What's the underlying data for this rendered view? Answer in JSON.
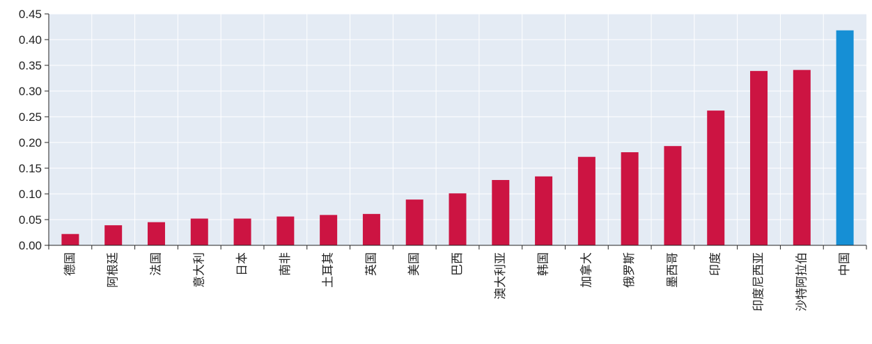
{
  "chart_data": {
    "type": "bar",
    "title": "",
    "xlabel": "",
    "ylabel": "",
    "ylim": [
      0,
      0.45
    ],
    "yticks": [
      "0.00",
      "0.05",
      "0.10",
      "0.15",
      "0.20",
      "0.25",
      "0.30",
      "0.35",
      "0.40",
      "0.45"
    ],
    "grid": true,
    "legend": "none",
    "categories": [
      "德国",
      "阿根廷",
      "法国",
      "意大利",
      "日本",
      "南非",
      "土耳其",
      "英国",
      "美国",
      "巴西",
      "澳大利亚",
      "韩国",
      "加拿大",
      "俄罗斯",
      "墨西哥",
      "印度",
      "印度尼西亚",
      "沙特阿拉伯",
      "中国"
    ],
    "values": [
      0.022,
      0.039,
      0.045,
      0.052,
      0.052,
      0.056,
      0.059,
      0.061,
      0.089,
      0.101,
      0.127,
      0.134,
      0.172,
      0.181,
      0.193,
      0.262,
      0.339,
      0.341,
      0.418
    ],
    "highlight_category": "中国",
    "colors": {
      "bar": "#cc1442",
      "highlight": "#168fd5",
      "plot_background": "#e4ebf4",
      "grid": "#ffffff",
      "axis": "#222222"
    }
  }
}
